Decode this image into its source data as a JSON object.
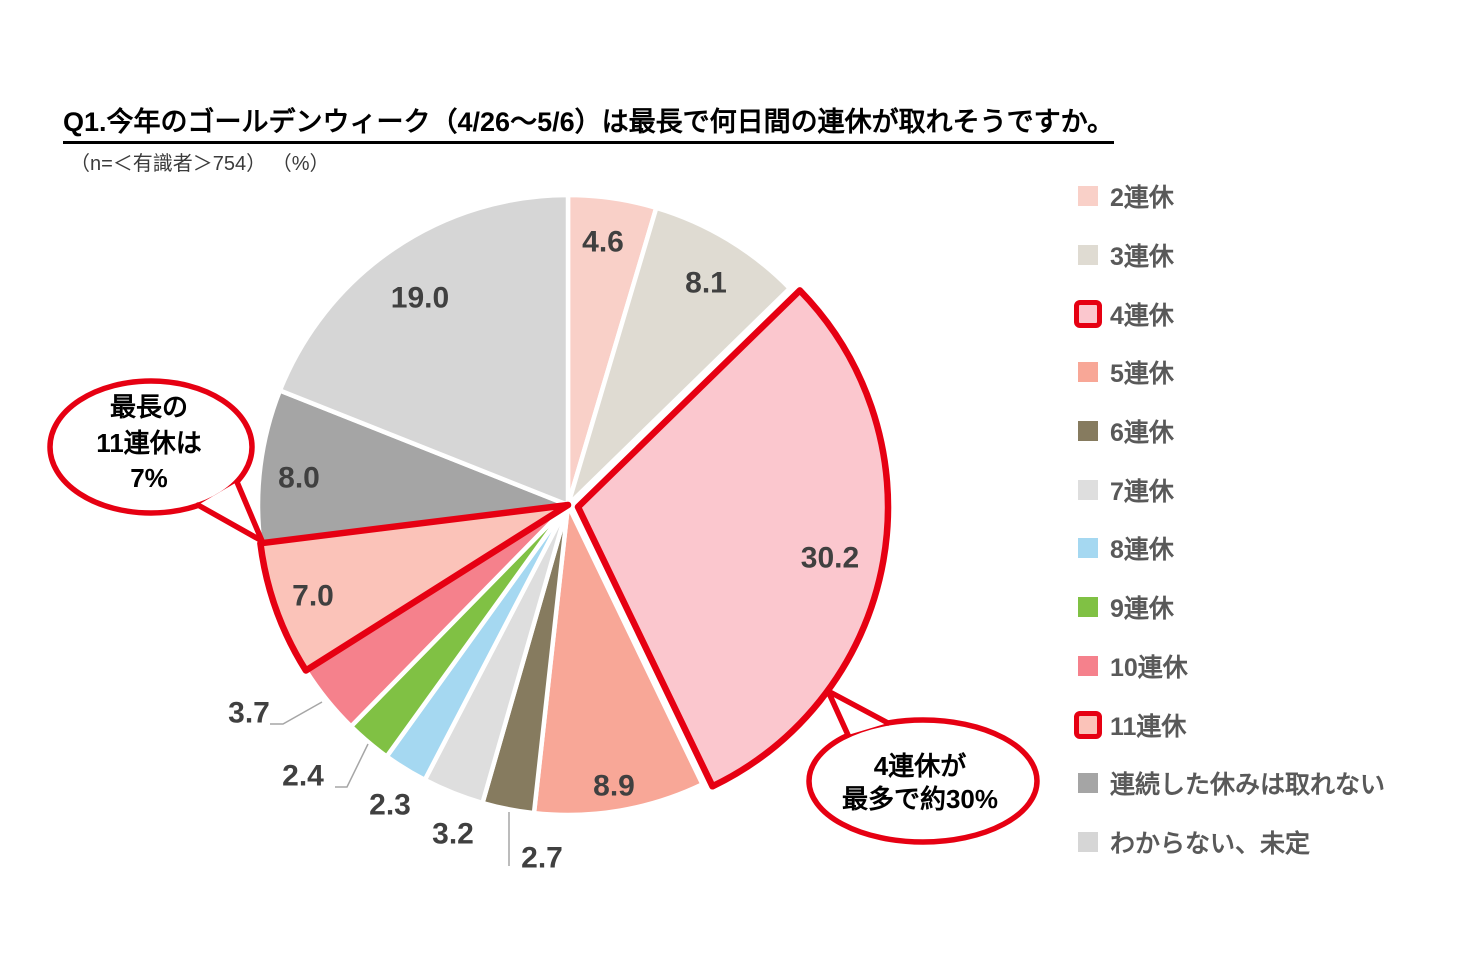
{
  "title": "Q1.今年のゴールデンウィーク（4/26～5/6）は最長で何日間の連休が取れそうですか。",
  "subtitle": "（n=＜有識者＞754） （%）",
  "chart_data": {
    "type": "pie",
    "title": "Q1.今年のゴールデンウィーク（4/26～5/6）は最長で何日間の連休が取れそうですか。",
    "sample_note": "（n=＜有識者＞754） （%）",
    "unit": "%",
    "start_angle_deg": 0,
    "direction": "clockwise",
    "legend_position": "right",
    "highlight_color": "#e60012",
    "label_color": "#404040",
    "legend_text_color": "#595959",
    "slices": [
      {
        "label": "2連休",
        "value": 4.6,
        "color": "#f9d0c8",
        "highlighted": false
      },
      {
        "label": "3連休",
        "value": 8.1,
        "color": "#dfdbd2",
        "highlighted": false
      },
      {
        "label": "4連休",
        "value": 30.2,
        "color": "#fbc7ce",
        "highlighted": true
      },
      {
        "label": "5連休",
        "value": 8.9,
        "color": "#f8a797",
        "highlighted": false
      },
      {
        "label": "6連休",
        "value": 2.7,
        "color": "#867b5f",
        "highlighted": false
      },
      {
        "label": "7連休",
        "value": 3.2,
        "color": "#dedede",
        "highlighted": false
      },
      {
        "label": "8連休",
        "value": 2.3,
        "color": "#a5d8f1",
        "highlighted": false
      },
      {
        "label": "9連休",
        "value": 2.4,
        "color": "#80c144",
        "highlighted": false
      },
      {
        "label": "10連休",
        "value": 3.7,
        "color": "#f5818c",
        "highlighted": false
      },
      {
        "label": "11連休",
        "value": 7.0,
        "color": "#fbc3b9",
        "highlighted": true
      },
      {
        "label": "連続した休みは取れない",
        "value": 8.0,
        "color": "#a5a5a5",
        "highlighted": false
      },
      {
        "label": "わからない、未定",
        "value": 19.0,
        "color": "#d6d6d6",
        "highlighted": false
      }
    ],
    "callouts": [
      {
        "id": "left",
        "lines": [
          "最長の",
          "11連休は",
          "7%"
        ]
      },
      {
        "id": "right",
        "lines": [
          "4連休が",
          "最多で約30%"
        ]
      }
    ]
  }
}
